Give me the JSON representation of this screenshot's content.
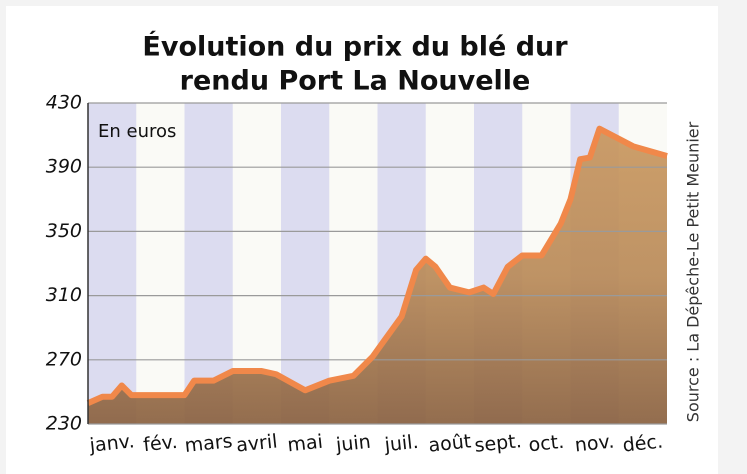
{
  "chart_data": {
    "type": "area",
    "title": [
      "Évolution du prix du blé dur",
      "rendu Port La Nouvelle"
    ],
    "annotation": "En euros",
    "source": "Source : La Dépêche-Le Petit Meunier",
    "categories": [
      "janv.",
      "fév.",
      "mars",
      "avril",
      "mai",
      "juin",
      "juil.",
      "août",
      "sept.",
      "oct.",
      "nov.",
      "déc."
    ],
    "xlim": [
      0,
      12
    ],
    "ylim": [
      230,
      430
    ],
    "yticks": [
      230,
      270,
      310,
      350,
      390,
      430
    ],
    "grid": true,
    "band_color": "#dcdcf0",
    "series": [
      {
        "color": "#f0884a",
        "x": [
          0,
          0.3,
          0.5,
          0.7,
          0.9,
          1.5,
          2.0,
          2.2,
          2.6,
          3.0,
          3.6,
          3.9,
          4.5,
          5.0,
          5.5,
          5.9,
          6.5,
          6.8,
          7.0,
          7.2,
          7.5,
          7.9,
          8.2,
          8.4,
          8.7,
          9.0,
          9.4,
          9.8,
          10.0,
          10.2,
          10.4,
          10.6,
          11.3,
          12.0
        ],
        "values": [
          243,
          247,
          247,
          254,
          248,
          248,
          248,
          257,
          257,
          263,
          263,
          261,
          251,
          257,
          260,
          272,
          297,
          326,
          333,
          328,
          315,
          312,
          315,
          311,
          328,
          335,
          335,
          355,
          370,
          395,
          396,
          414,
          403,
          397
        ]
      }
    ]
  }
}
